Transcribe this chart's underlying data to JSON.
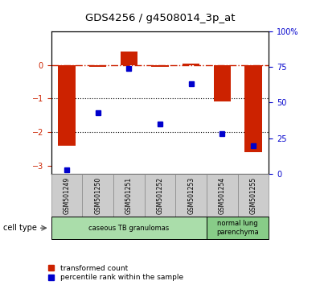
{
  "title": "GDS4256 / g4508014_3p_at",
  "samples": [
    "GSM501249",
    "GSM501250",
    "GSM501251",
    "GSM501252",
    "GSM501253",
    "GSM501254",
    "GSM501255"
  ],
  "transformed_count": [
    -2.4,
    -0.05,
    0.4,
    -0.05,
    0.05,
    -1.1,
    -2.6
  ],
  "percentile_rank": [
    3,
    43,
    74,
    35,
    63,
    28,
    20
  ],
  "ylim": [
    -3.25,
    1.0
  ],
  "yticks": [
    0,
    -1,
    -2,
    -3
  ],
  "right_ylim": [
    0,
    100
  ],
  "right_yticks": [
    0,
    25,
    50,
    75,
    100
  ],
  "red_color": "#cc2200",
  "blue_color": "#0000cc",
  "dotted_lines": [
    -1,
    -2
  ],
  "cell_type_groups": [
    {
      "start": 0,
      "end": 4,
      "label": "caseous TB granulomas",
      "color": "#aaddaa"
    },
    {
      "start": 5,
      "end": 6,
      "label": "normal lung\nparenchyma",
      "color": "#88cc88"
    }
  ],
  "legend_red": "transformed count",
  "legend_blue": "percentile rank within the sample",
  "cell_type_label": "cell type",
  "bar_width": 0.55,
  "background_color": "#ffffff",
  "tick_label_color_left": "#cc2200",
  "tick_label_color_right": "#0000cc"
}
